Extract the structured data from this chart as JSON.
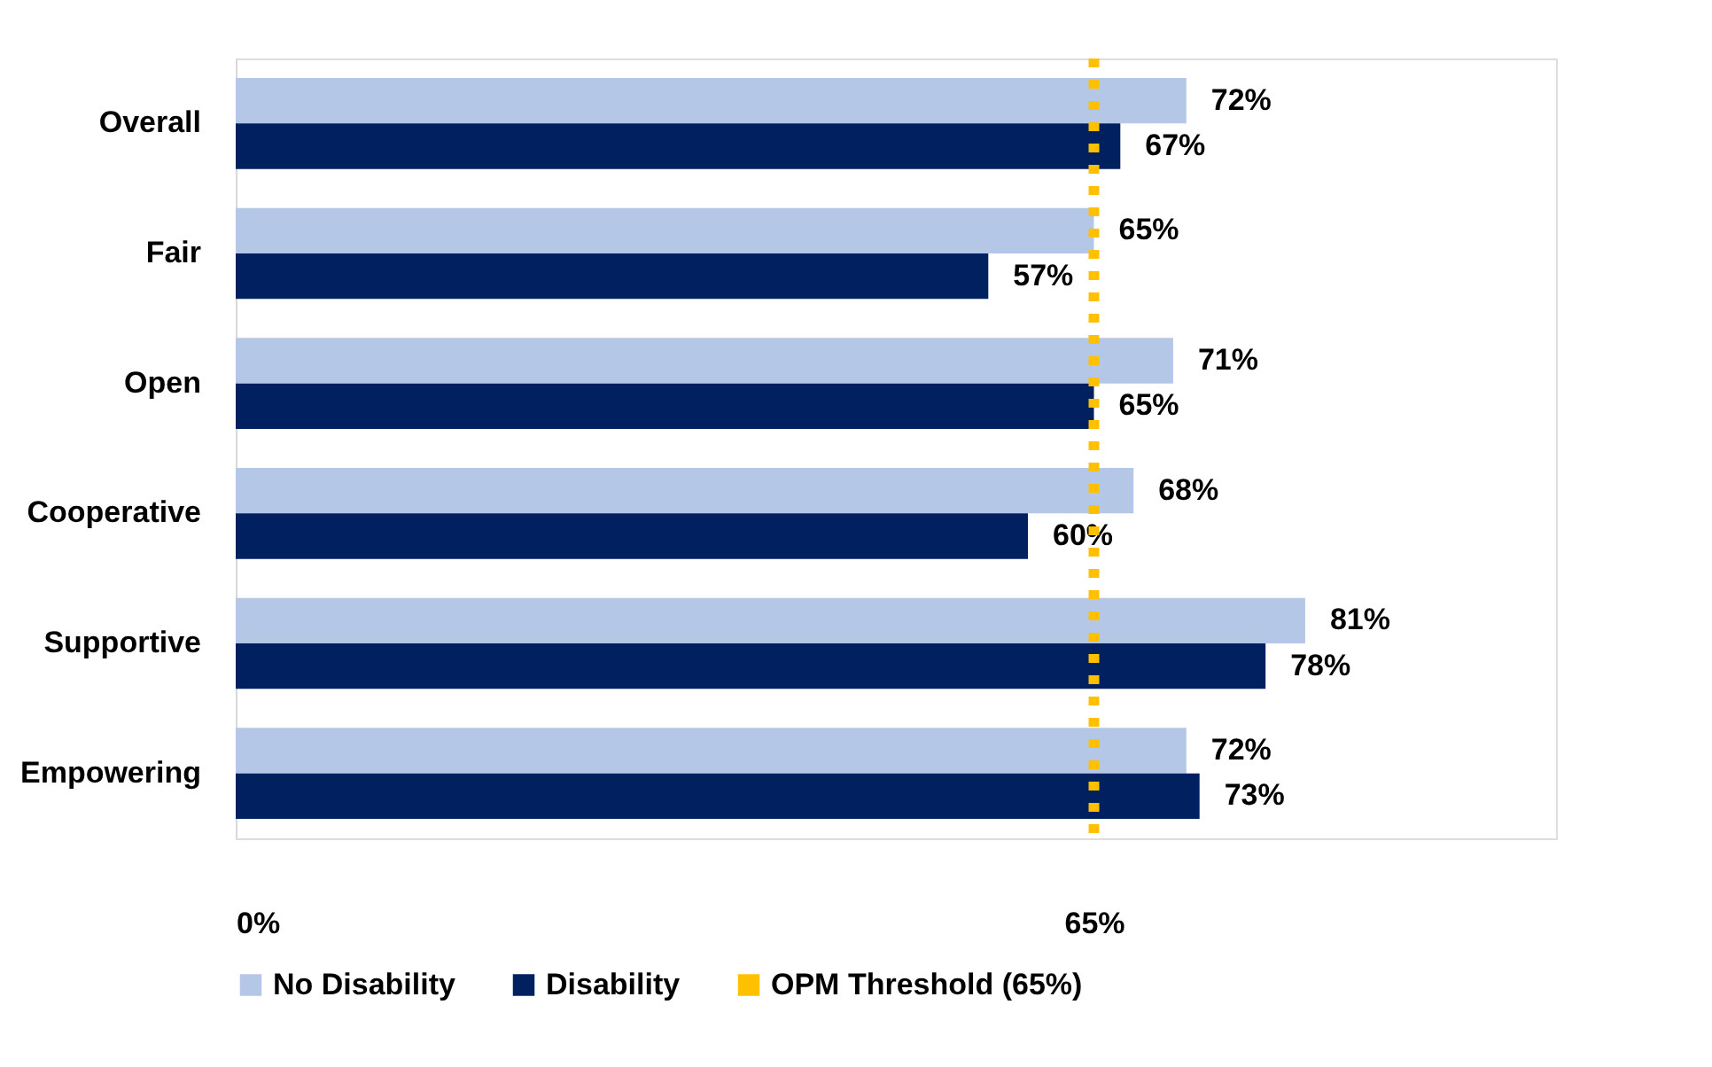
{
  "chart_data": {
    "type": "bar",
    "orientation": "horizontal",
    "categories": [
      "Overall",
      "Fair",
      "Open",
      "Cooperative",
      "Supportive",
      "Empowering"
    ],
    "series": [
      {
        "name": "No Disability",
        "color": "#b4c7e7",
        "values": [
          72,
          65,
          71,
          68,
          81,
          72
        ],
        "value_labels": [
          "72%",
          "65%",
          "71%",
          "68%",
          "81%",
          "72%"
        ]
      },
      {
        "name": "Disability",
        "color": "#002060",
        "values": [
          67,
          57,
          65,
          60,
          78,
          73
        ],
        "value_labels": [
          "67%",
          "57%",
          "65%",
          "60%",
          "78%",
          "73%"
        ]
      }
    ],
    "xlim": [
      0,
      100
    ],
    "xticks": [
      {
        "value": 0,
        "label": "0%"
      },
      {
        "value": 65,
        "label": "65%"
      }
    ],
    "ref_lines": [
      {
        "axis": "x",
        "value": 65,
        "label": "OPM Threshold (65%)",
        "color": "#ffc000",
        "line_style": "dotted"
      }
    ],
    "grid": false,
    "legend": "bottom"
  }
}
